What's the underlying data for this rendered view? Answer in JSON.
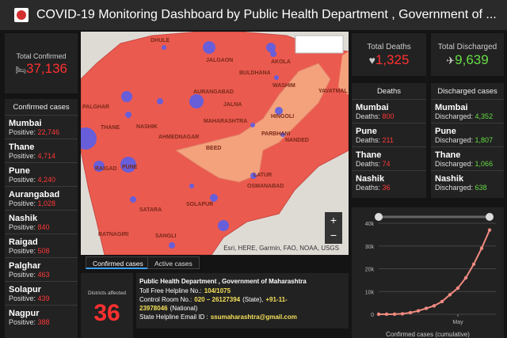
{
  "header": {
    "title": "COVID-19 Monitoring Dashboard by Public Health Department , Government of ..."
  },
  "total_confirmed": {
    "label": "Total Confirmed",
    "value": "37,136"
  },
  "confirmed_list": {
    "title": "Confirmed cases",
    "items": [
      {
        "name": "Mumbai",
        "label": "Positive:",
        "value": "22,746"
      },
      {
        "name": "Thane",
        "label": "Positive:",
        "value": "4,714"
      },
      {
        "name": "Pune",
        "label": "Positive:",
        "value": "4,240"
      },
      {
        "name": "Aurangabad",
        "label": "Positive:",
        "value": "1,028"
      },
      {
        "name": "Nashik",
        "label": "Positive:",
        "value": "840"
      },
      {
        "name": "Raigad",
        "label": "Positive:",
        "value": "508"
      },
      {
        "name": "Palghar",
        "label": "Positive:",
        "value": "463"
      },
      {
        "name": "Solapur",
        "label": "Positive:",
        "value": "439"
      },
      {
        "name": "Nagpur",
        "label": "Positive:",
        "value": "388"
      }
    ]
  },
  "map": {
    "labels": [
      "DHULE",
      "JALGAON",
      "AKOLA",
      "BULDHANA",
      "WASHIM",
      "YAVATMAL",
      "NASHIK",
      "AURANGABAD",
      "JALNA",
      "HINGOLI",
      "PALGHAR",
      "THANE",
      "MAHARASHTRA",
      "PARBHANI",
      "NANDED",
      "AHMEDNAGAR",
      "BEED",
      "RAIGAD",
      "PUNE",
      "LATUR",
      "OSMANABAD",
      "SATARA",
      "SOLAPUR",
      "RATNAGIRI",
      "SANGLI"
    ],
    "attribution": "Esri, HERE, Garmin, FAO, NOAA, USGS",
    "tabs": [
      "Confirmed cases",
      "Active cases"
    ]
  },
  "total_deaths": {
    "label": "Total Deaths",
    "value": "1,325"
  },
  "total_discharged": {
    "label": "Total Discharged",
    "value": "9,639"
  },
  "deaths_list": {
    "title": "Deaths",
    "items": [
      {
        "name": "Mumbai",
        "label": "Deaths:",
        "value": "800"
      },
      {
        "name": "Pune",
        "label": "Deaths:",
        "value": "211"
      },
      {
        "name": "Thane",
        "label": "Deaths:",
        "value": "74"
      },
      {
        "name": "Nashik",
        "label": "Deaths:",
        "value": "36"
      }
    ]
  },
  "discharged_list": {
    "title": "Discharged cases",
    "items": [
      {
        "name": "Mumbai",
        "label": "Discharged:",
        "value": "4,352"
      },
      {
        "name": "Pune",
        "label": "Discharged:",
        "value": "1,807"
      },
      {
        "name": "Thane",
        "label": "Discharged:",
        "value": "1,066"
      },
      {
        "name": "Nashik",
        "label": "Discharged:",
        "value": "638"
      }
    ]
  },
  "districts": {
    "label": "Districts affected",
    "value": "36"
  },
  "info": {
    "title": "Public Health Department , Government of Maharashtra",
    "lines": [
      [
        {
          "text": "Toll Free Helpline No.:",
          "hl": false
        },
        {
          "text": "104/1075",
          "hl": true
        }
      ],
      [
        {
          "text": "Control Room No.:",
          "hl": false
        },
        {
          "text": "020 – 26127394",
          "hl": true
        },
        {
          "text": "(State),",
          "hl": false
        },
        {
          "text": "+91-11-",
          "hl": true
        }
      ],
      [
        {
          "text": "23978046",
          "hl": true
        },
        {
          "text": "(National)",
          "hl": false
        }
      ],
      [
        {
          "text": "State Helpline Email ID :",
          "hl": false
        },
        {
          "text": "ssumaharashtra@gmail.com",
          "hl": true
        }
      ]
    ]
  },
  "chart_data": {
    "type": "line",
    "title": "Confirmed cases (cumulative)",
    "color": "#f28a80",
    "categories": [
      null,
      null,
      null,
      null,
      null,
      null,
      null,
      null,
      null,
      null,
      "May",
      null,
      null,
      null,
      null
    ],
    "values": [
      0,
      10,
      40,
      200,
      700,
      1500,
      2600,
      3700,
      5600,
      8600,
      11500,
      16000,
      22000,
      29000,
      37000
    ],
    "ylim": [
      0,
      40000
    ],
    "yticks": [
      0,
      {
        "value": 10000,
        "label": "10k"
      },
      {
        "value": 20000,
        "label": "20k"
      },
      {
        "value": 30000,
        "label": "30k"
      },
      {
        "value": 40000,
        "label": "40k"
      }
    ],
    "grid": true
  }
}
